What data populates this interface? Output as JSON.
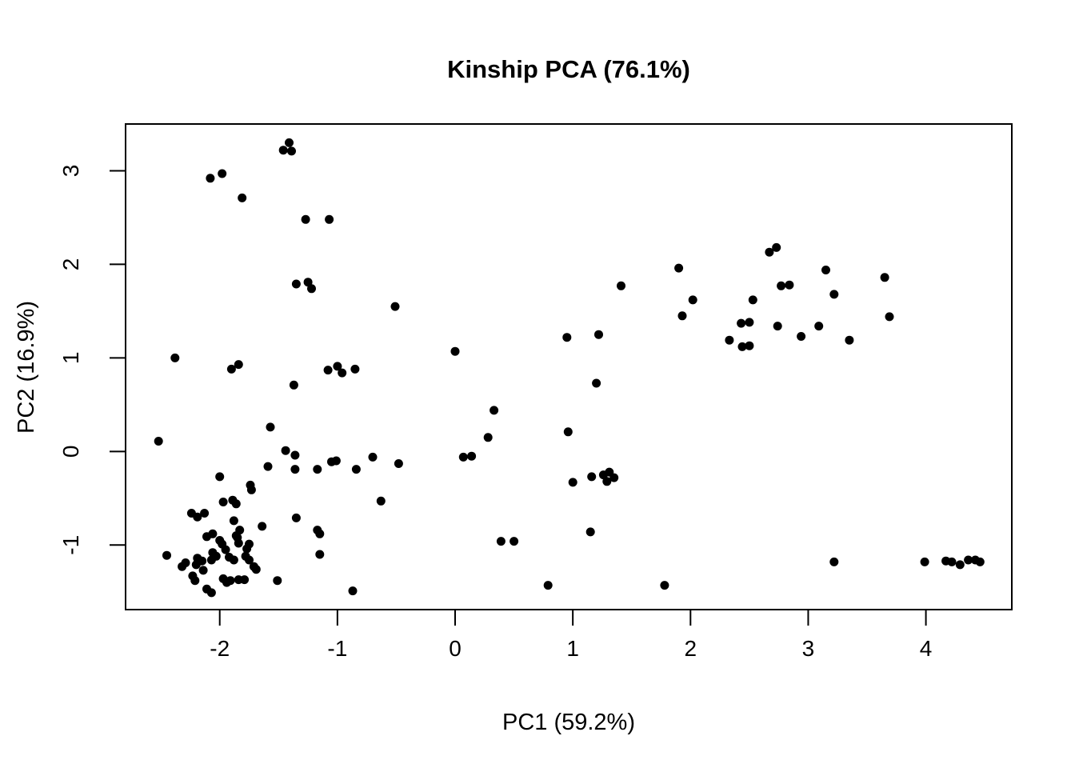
{
  "chart_data": {
    "type": "scatter",
    "title": "Kinship PCA (76.1%)",
    "xlabel": "PC1 (59.2%)",
    "ylabel": "PC2 (16.9%)",
    "xlim": [
      -2.8,
      4.73
    ],
    "ylim": [
      -1.69,
      3.5
    ],
    "x_ticks": [
      -2,
      -1,
      0,
      1,
      2,
      3,
      4
    ],
    "y_ticks": [
      -1,
      0,
      1,
      2,
      3
    ],
    "grid": false,
    "legend": false,
    "point_color": "#000000",
    "background_color": "#ffffff",
    "marker": "filled-circle",
    "marker_radius": 5.5,
    "points": [
      [
        -1.41,
        3.3
      ],
      [
        -1.46,
        3.22
      ],
      [
        -1.39,
        3.21
      ],
      [
        -2.08,
        2.92
      ],
      [
        -1.98,
        2.97
      ],
      [
        -1.81,
        2.71
      ],
      [
        -1.27,
        2.48
      ],
      [
        -1.07,
        2.48
      ],
      [
        -1.35,
        1.79
      ],
      [
        -1.25,
        1.81
      ],
      [
        -1.22,
        1.74
      ],
      [
        -0.51,
        1.55
      ],
      [
        -2.38,
        1.0
      ],
      [
        -1.9,
        0.88
      ],
      [
        -1.84,
        0.93
      ],
      [
        -1.08,
        0.87
      ],
      [
        -1.0,
        0.91
      ],
      [
        -0.96,
        0.84
      ],
      [
        -0.85,
        0.88
      ],
      [
        0.0,
        1.07
      ],
      [
        1.9,
        1.96
      ],
      [
        1.41,
        1.77
      ],
      [
        2.02,
        1.62
      ],
      [
        1.93,
        1.45
      ],
      [
        0.95,
        1.22
      ],
      [
        1.22,
        1.25
      ],
      [
        2.33,
        1.19
      ],
      [
        2.67,
        2.13
      ],
      [
        2.73,
        2.18
      ],
      [
        3.15,
        1.94
      ],
      [
        3.65,
        1.86
      ],
      [
        2.77,
        1.77
      ],
      [
        2.84,
        1.78
      ],
      [
        3.22,
        1.68
      ],
      [
        2.53,
        1.62
      ],
      [
        3.69,
        1.44
      ],
      [
        2.43,
        1.37
      ],
      [
        2.5,
        1.38
      ],
      [
        2.74,
        1.34
      ],
      [
        3.09,
        1.34
      ],
      [
        2.94,
        1.23
      ],
      [
        2.44,
        1.12
      ],
      [
        2.5,
        1.13
      ],
      [
        3.35,
        1.19
      ],
      [
        0.33,
        0.44
      ],
      [
        0.28,
        0.15
      ],
      [
        1.2,
        0.73
      ],
      [
        0.96,
        0.21
      ],
      [
        -1.57,
        0.26
      ],
      [
        -2.52,
        0.11
      ],
      [
        -1.44,
        0.01
      ],
      [
        -1.36,
        -0.04
      ],
      [
        -1.37,
        0.71
      ],
      [
        0.07,
        -0.06
      ],
      [
        0.14,
        -0.05
      ],
      [
        -0.7,
        -0.06
      ],
      [
        -0.48,
        -0.13
      ],
      [
        -1.59,
        -0.16
      ],
      [
        -1.36,
        -0.19
      ],
      [
        -1.17,
        -0.19
      ],
      [
        -1.05,
        -0.11
      ],
      [
        -1.01,
        -0.1
      ],
      [
        -0.84,
        -0.19
      ],
      [
        1.16,
        -0.27
      ],
      [
        1.26,
        -0.25
      ],
      [
        1.31,
        -0.22
      ],
      [
        1.35,
        -0.28
      ],
      [
        1.29,
        -0.32
      ],
      [
        1.0,
        -0.33
      ],
      [
        -0.63,
        -0.53
      ],
      [
        1.15,
        -0.86
      ],
      [
        0.39,
        -0.96
      ],
      [
        0.5,
        -0.96
      ],
      [
        0.79,
        -1.43
      ],
      [
        1.78,
        -1.43
      ],
      [
        -2.0,
        -0.27
      ],
      [
        -1.74,
        -0.36
      ],
      [
        -1.73,
        -0.41
      ],
      [
        -1.97,
        -0.54
      ],
      [
        -1.89,
        -0.52
      ],
      [
        -1.86,
        -0.56
      ],
      [
        -2.24,
        -0.66
      ],
      [
        -2.19,
        -0.7
      ],
      [
        -2.13,
        -0.66
      ],
      [
        -1.88,
        -0.74
      ],
      [
        -1.83,
        -0.84
      ],
      [
        -1.86,
        -0.9
      ],
      [
        -1.64,
        -0.8
      ],
      [
        -2.11,
        -0.91
      ],
      [
        -2.06,
        -0.88
      ],
      [
        -2.0,
        -0.95
      ],
      [
        -1.98,
        -0.99
      ],
      [
        -1.95,
        -1.05
      ],
      [
        -1.85,
        -0.92
      ],
      [
        -1.84,
        -0.98
      ],
      [
        -1.75,
        -0.99
      ],
      [
        -1.77,
        -1.04
      ],
      [
        -2.45,
        -1.11
      ],
      [
        -2.29,
        -1.19
      ],
      [
        -2.32,
        -1.23
      ],
      [
        -2.19,
        -1.14
      ],
      [
        -2.15,
        -1.17
      ],
      [
        -2.2,
        -1.21
      ],
      [
        -2.06,
        -1.08
      ],
      [
        -2.03,
        -1.12
      ],
      [
        -2.07,
        -1.16
      ],
      [
        -1.92,
        -1.13
      ],
      [
        -1.88,
        -1.16
      ],
      [
        -1.78,
        -1.12
      ],
      [
        -1.75,
        -1.16
      ],
      [
        -1.71,
        -1.23
      ],
      [
        -1.69,
        -1.26
      ],
      [
        -2.14,
        -1.27
      ],
      [
        -2.23,
        -1.33
      ],
      [
        -2.21,
        -1.38
      ],
      [
        -1.97,
        -1.36
      ],
      [
        -1.94,
        -1.4
      ],
      [
        -1.91,
        -1.38
      ],
      [
        -1.84,
        -1.37
      ],
      [
        -1.79,
        -1.37
      ],
      [
        -1.51,
        -1.38
      ],
      [
        -2.11,
        -1.47
      ],
      [
        -2.07,
        -1.51
      ],
      [
        -1.35,
        -0.71
      ],
      [
        -1.17,
        -0.84
      ],
      [
        -1.15,
        -0.88
      ],
      [
        -1.15,
        -1.1
      ],
      [
        -0.87,
        -1.49
      ],
      [
        3.22,
        -1.18
      ],
      [
        3.99,
        -1.18
      ],
      [
        4.17,
        -1.17
      ],
      [
        4.22,
        -1.18
      ],
      [
        4.29,
        -1.21
      ],
      [
        4.36,
        -1.16
      ],
      [
        4.42,
        -1.16
      ],
      [
        4.46,
        -1.18
      ]
    ]
  }
}
